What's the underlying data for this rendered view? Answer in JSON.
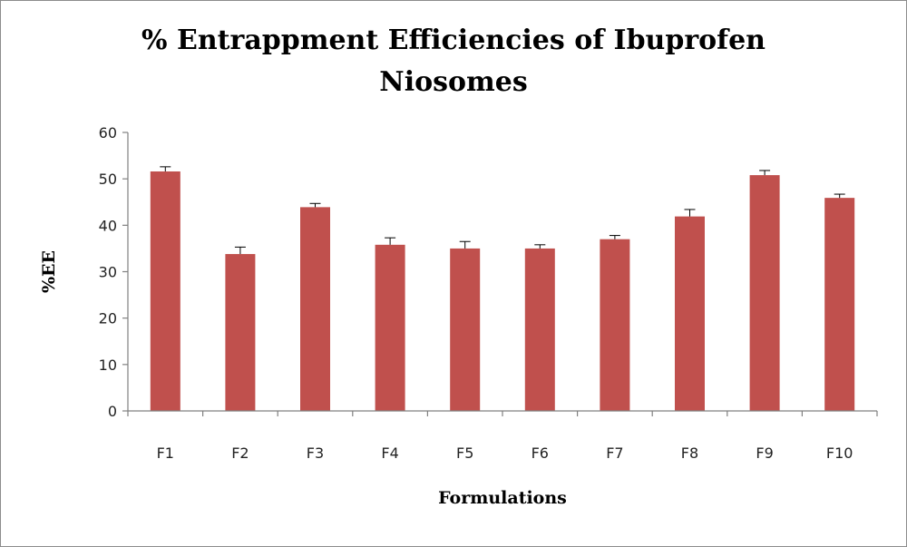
{
  "chart_data": {
    "type": "bar",
    "title_lines": [
      "% Entrappment Efficiencies of Ibuprofen",
      "Niosomes"
    ],
    "xlabel": "Formulations",
    "ylabel": "%EE",
    "categories": [
      "F1",
      "F2",
      "F3",
      "F4",
      "F5",
      "F6",
      "F7",
      "F8",
      "F9",
      "F10"
    ],
    "values": [
      51.6,
      33.8,
      43.9,
      35.8,
      35.0,
      35.0,
      37.0,
      41.9,
      50.8,
      45.9
    ],
    "errors": [
      1.0,
      1.5,
      0.8,
      1.5,
      1.5,
      0.8,
      0.8,
      1.5,
      1.0,
      0.8
    ],
    "ylim": [
      0,
      60
    ],
    "yticks": [
      0,
      10,
      20,
      30,
      40,
      50,
      60
    ],
    "grid": false,
    "legend": "none",
    "colors": {
      "bar": "#c0504d",
      "axis": "#808080",
      "error": "#000000"
    }
  }
}
